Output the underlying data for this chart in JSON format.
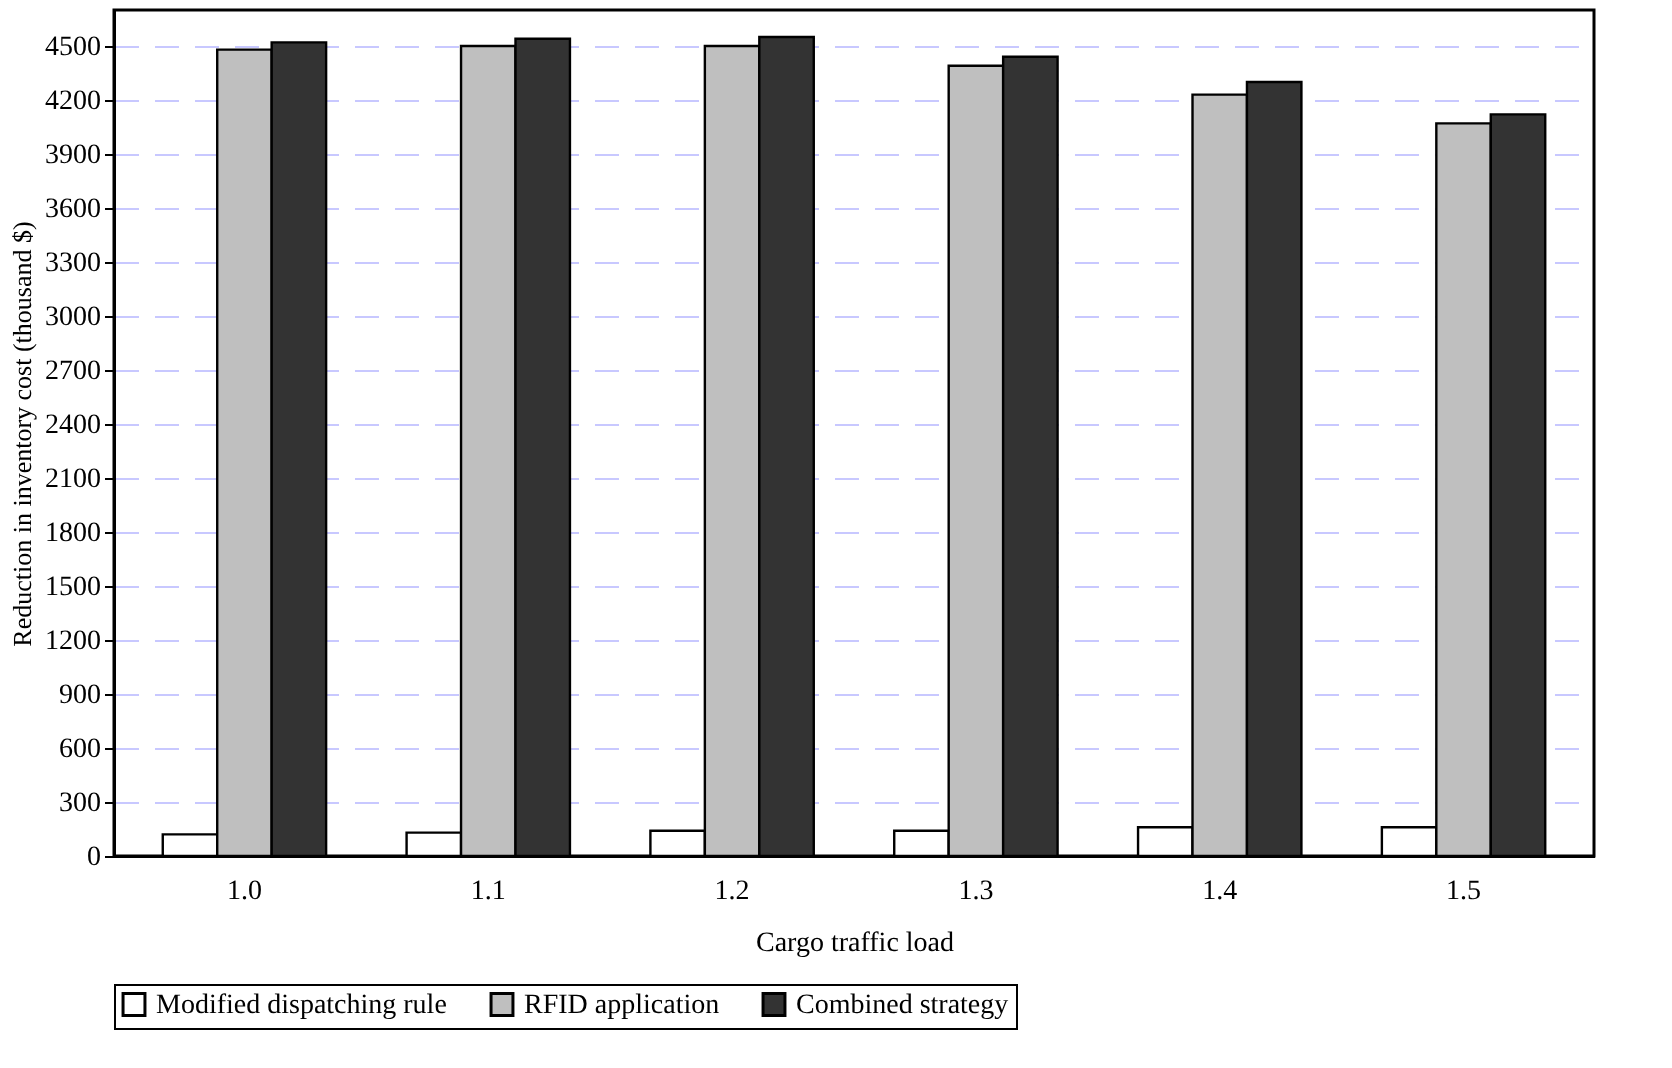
{
  "chart_data": {
    "type": "bar",
    "xlabel": "Cargo traffic load",
    "ylabel": "Reduction in inventory cost (thousand $)",
    "categories": [
      "1.0",
      "1.1",
      "1.2",
      "1.3",
      "1.4",
      "1.5"
    ],
    "series": [
      {
        "name": "Modified dispatching rule",
        "color": "#ffffff",
        "values": [
          120,
          130,
          140,
          140,
          160,
          160
        ]
      },
      {
        "name": "RFID application",
        "color": "#bfbfbf",
        "values": [
          4480,
          4500,
          4500,
          4390,
          4230,
          4070
        ]
      },
      {
        "name": "Combined strategy",
        "color": "#333333",
        "values": [
          4520,
          4540,
          4550,
          4440,
          4300,
          4120
        ]
      }
    ],
    "ylim": [
      0,
      4700
    ],
    "yticks": [
      0,
      300,
      600,
      900,
      1200,
      1500,
      1800,
      2100,
      2400,
      2700,
      3000,
      3300,
      3600,
      3900,
      4200,
      4500
    ],
    "grid": "y",
    "legend": "bottom"
  }
}
